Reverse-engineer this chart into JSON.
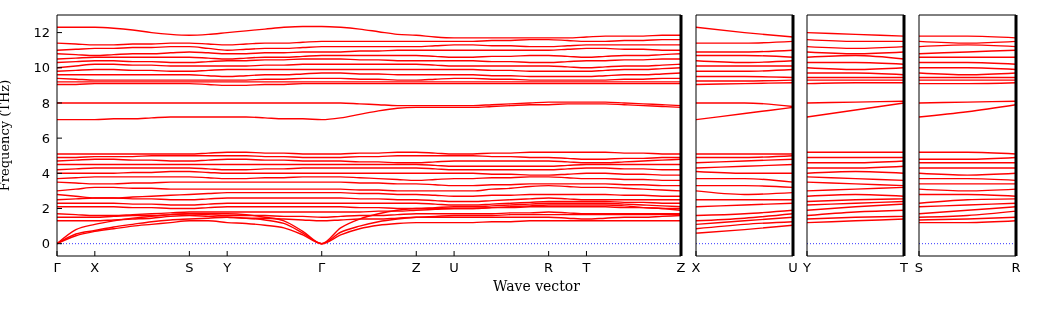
{
  "chart_data": [
    {
      "type": "line",
      "xlabel": "Wave vector",
      "ylabel": "Frequency (THz)",
      "marker": "none",
      "ylim": [
        -0.7,
        13
      ],
      "yticks": [
        0,
        2,
        4,
        6,
        8,
        10,
        12
      ],
      "categories": [
        "Γ",
        null,
        "X",
        null,
        null,
        null,
        null,
        "S",
        null,
        "Y",
        null,
        null,
        null,
        null,
        "Γ",
        null,
        null,
        null,
        null,
        "Z",
        null,
        "U",
        null,
        null,
        null,
        null,
        "R",
        null,
        "T",
        null,
        null,
        null,
        null,
        "Z"
      ],
      "ref_lines": [
        {
          "axis": "y",
          "value": 0,
          "color": "#0000ff",
          "line_style": "dotted"
        }
      ],
      "series": [
        {
          "color": "#ff0000",
          "values": [
            12.3,
            12.3,
            12.3,
            12.25,
            12.15,
            12.0,
            11.9,
            11.85,
            11.9,
            12.0,
            12.1,
            12.2,
            12.3,
            12.35,
            12.35,
            12.3,
            12.2,
            12.05,
            11.9,
            11.85,
            11.75,
            11.7,
            11.7,
            11.7,
            11.7,
            11.7,
            11.7,
            11.7,
            11.75,
            11.8,
            11.8,
            11.8,
            11.85,
            11.85
          ]
        },
        {
          "color": "#ff0000",
          "values": [
            11.4,
            11.35,
            11.3,
            11.3,
            11.35,
            11.35,
            11.4,
            11.4,
            11.35,
            11.3,
            11.35,
            11.4,
            11.4,
            11.45,
            11.5,
            11.5,
            11.5,
            11.5,
            11.5,
            11.5,
            11.5,
            11.5,
            11.5,
            11.55,
            11.55,
            11.6,
            11.6,
            11.55,
            11.5,
            11.5,
            11.55,
            11.55,
            11.6,
            11.6
          ]
        },
        {
          "color": "#ff0000",
          "values": [
            11.0,
            11.05,
            11.1,
            11.1,
            11.15,
            11.15,
            11.2,
            11.2,
            11.1,
            11.0,
            11.05,
            11.1,
            11.1,
            11.15,
            11.2,
            11.2,
            11.2,
            11.2,
            11.2,
            11.2,
            11.25,
            11.3,
            11.3,
            11.25,
            11.25,
            11.2,
            11.2,
            11.25,
            11.3,
            11.3,
            11.3,
            11.3,
            11.3,
            11.3
          ]
        },
        {
          "color": "#ff0000",
          "values": [
            10.8,
            10.75,
            10.7,
            10.75,
            10.8,
            10.8,
            10.85,
            10.9,
            10.85,
            10.8,
            10.8,
            10.85,
            10.85,
            10.9,
            10.9,
            10.9,
            10.95,
            10.95,
            11.0,
            11.0,
            11.0,
            11.0,
            11.0,
            11.0,
            11.0,
            11.0,
            11.0,
            11.05,
            11.1,
            11.1,
            11.05,
            11.05,
            11.0,
            11.0
          ]
        },
        {
          "color": "#ff0000",
          "values": [
            10.5,
            10.55,
            10.6,
            10.6,
            10.6,
            10.6,
            10.6,
            10.6,
            10.55,
            10.5,
            10.55,
            10.6,
            10.6,
            10.65,
            10.7,
            10.7,
            10.7,
            10.7,
            10.7,
            10.7,
            10.65,
            10.6,
            10.6,
            10.65,
            10.65,
            10.7,
            10.7,
            10.65,
            10.6,
            10.65,
            10.7,
            10.7,
            10.75,
            10.8
          ]
        },
        {
          "color": "#ff0000",
          "values": [
            10.3,
            10.35,
            10.4,
            10.4,
            10.35,
            10.35,
            10.3,
            10.3,
            10.35,
            10.4,
            10.4,
            10.45,
            10.45,
            10.5,
            10.5,
            10.5,
            10.45,
            10.45,
            10.4,
            10.4,
            10.4,
            10.4,
            10.4,
            10.35,
            10.35,
            10.3,
            10.3,
            10.35,
            10.4,
            10.4,
            10.45,
            10.45,
            10.5,
            10.5
          ]
        },
        {
          "color": "#ff0000",
          "values": [
            10.0,
            10.1,
            10.2,
            10.2,
            10.15,
            10.15,
            10.1,
            10.1,
            10.1,
            10.1,
            10.1,
            10.15,
            10.15,
            10.2,
            10.2,
            10.2,
            10.2,
            10.2,
            10.2,
            10.2,
            10.15,
            10.1,
            10.1,
            10.1,
            10.1,
            10.1,
            10.1,
            10.05,
            10.0,
            10.05,
            10.1,
            10.1,
            10.15,
            10.2
          ]
        },
        {
          "color": "#ff0000",
          "values": [
            9.8,
            9.85,
            9.9,
            9.9,
            9.85,
            9.85,
            9.8,
            9.8,
            9.85,
            9.9,
            9.9,
            9.9,
            9.9,
            9.9,
            9.9,
            9.9,
            9.9,
            9.9,
            9.9,
            9.9,
            9.9,
            9.9,
            9.9,
            9.85,
            9.85,
            9.8,
            9.8,
            9.8,
            9.8,
            9.85,
            9.9,
            9.9,
            9.95,
            10.0
          ]
        },
        {
          "color": "#ff0000",
          "values": [
            9.6,
            9.6,
            9.6,
            9.6,
            9.6,
            9.6,
            9.6,
            9.6,
            9.55,
            9.5,
            9.55,
            9.6,
            9.6,
            9.65,
            9.7,
            9.7,
            9.65,
            9.65,
            9.6,
            9.6,
            9.6,
            9.6,
            9.6,
            9.55,
            9.55,
            9.5,
            9.5,
            9.5,
            9.5,
            9.55,
            9.6,
            9.6,
            9.65,
            9.7
          ]
        },
        {
          "color": "#ff0000",
          "values": [
            9.4,
            9.35,
            9.3,
            9.3,
            9.3,
            9.3,
            9.3,
            9.3,
            9.3,
            9.3,
            9.3,
            9.35,
            9.35,
            9.4,
            9.4,
            9.4,
            9.35,
            9.35,
            9.3,
            9.3,
            9.35,
            9.4,
            9.4,
            9.35,
            9.35,
            9.3,
            9.3,
            9.3,
            9.3,
            9.3,
            9.35,
            9.35,
            9.4,
            9.4
          ]
        },
        {
          "color": "#ff0000",
          "values": [
            9.2,
            9.2,
            9.2,
            9.2,
            9.2,
            9.2,
            9.2,
            9.2,
            9.2,
            9.2,
            9.2,
            9.2,
            9.2,
            9.2,
            9.2,
            9.2,
            9.2,
            9.2,
            9.2,
            9.2,
            9.2,
            9.2,
            9.2,
            9.2,
            9.2,
            9.2,
            9.2,
            9.2,
            9.2,
            9.2,
            9.2,
            9.2,
            9.2,
            9.2
          ]
        },
        {
          "color": "#ff0000",
          "values": [
            9.05,
            9.05,
            9.1,
            9.1,
            9.1,
            9.1,
            9.1,
            9.1,
            9.05,
            9.0,
            9.0,
            9.05,
            9.05,
            9.1,
            9.1,
            9.1,
            9.1,
            9.1,
            9.1,
            9.1,
            9.1,
            9.1,
            9.1,
            9.1,
            9.1,
            9.1,
            9.1,
            9.1,
            9.1,
            9.1,
            9.1,
            9.1,
            9.1,
            9.1
          ]
        },
        {
          "color": "#ff0000",
          "values": [
            8.0,
            8.0,
            8.0,
            8.0,
            8.0,
            8.0,
            8.0,
            8.0,
            8.0,
            8.0,
            8.0,
            8.0,
            8.0,
            8.0,
            8.0,
            8.0,
            7.95,
            7.9,
            7.85,
            7.85,
            7.85,
            7.85,
            7.85,
            7.9,
            7.95,
            8.0,
            8.05,
            8.05,
            8.05,
            8.05,
            8.0,
            7.95,
            7.9,
            7.85
          ]
        },
        {
          "color": "#ff0000",
          "values": [
            7.05,
            7.05,
            7.05,
            7.1,
            7.1,
            7.15,
            7.2,
            7.2,
            7.2,
            7.2,
            7.2,
            7.15,
            7.1,
            7.1,
            7.05,
            7.15,
            7.35,
            7.55,
            7.7,
            7.75,
            7.75,
            7.75,
            7.75,
            7.8,
            7.85,
            7.9,
            7.9,
            7.95,
            7.95,
            7.95,
            7.9,
            7.85,
            7.8,
            7.75
          ]
        },
        {
          "color": "#ff0000",
          "values": [
            5.1,
            5.1,
            5.1,
            5.1,
            5.1,
            5.1,
            5.1,
            5.1,
            5.15,
            5.2,
            5.2,
            5.15,
            5.15,
            5.1,
            5.1,
            5.1,
            5.15,
            5.15,
            5.2,
            5.2,
            5.15,
            5.1,
            5.1,
            5.15,
            5.15,
            5.2,
            5.2,
            5.2,
            5.2,
            5.2,
            5.15,
            5.15,
            5.1,
            5.1
          ]
        },
        {
          "color": "#ff0000",
          "values": [
            4.9,
            4.9,
            4.95,
            4.95,
            4.95,
            5.0,
            5.0,
            5.0,
            5.0,
            5.0,
            5.0,
            4.95,
            4.95,
            4.9,
            4.9,
            4.9,
            4.95,
            4.95,
            5.0,
            5.0,
            5.0,
            5.0,
            5.0,
            4.95,
            4.95,
            4.9,
            4.9,
            4.85,
            4.8,
            4.8,
            4.85,
            4.85,
            4.9,
            4.9
          ]
        },
        {
          "color": "#ff0000",
          "values": [
            4.7,
            4.75,
            4.8,
            4.8,
            4.75,
            4.75,
            4.7,
            4.7,
            4.75,
            4.8,
            4.8,
            4.75,
            4.75,
            4.7,
            4.7,
            4.7,
            4.65,
            4.65,
            4.6,
            4.6,
            4.65,
            4.7,
            4.7,
            4.7,
            4.7,
            4.7,
            4.7,
            4.65,
            4.6,
            4.6,
            4.65,
            4.7,
            4.75,
            4.8
          ]
        },
        {
          "color": "#ff0000",
          "values": [
            4.5,
            4.5,
            4.5,
            4.5,
            4.5,
            4.5,
            4.5,
            4.5,
            4.5,
            4.5,
            4.5,
            4.5,
            4.5,
            4.5,
            4.5,
            4.5,
            4.5,
            4.5,
            4.5,
            4.5,
            4.45,
            4.4,
            4.4,
            4.4,
            4.4,
            4.4,
            4.4,
            4.45,
            4.5,
            4.5,
            4.5,
            4.5,
            4.5,
            4.5
          ]
        },
        {
          "color": "#ff0000",
          "values": [
            4.2,
            4.25,
            4.3,
            4.3,
            4.3,
            4.3,
            4.3,
            4.3,
            4.25,
            4.2,
            4.2,
            4.25,
            4.25,
            4.3,
            4.3,
            4.3,
            4.3,
            4.3,
            4.3,
            4.3,
            4.25,
            4.2,
            4.2,
            4.2,
            4.2,
            4.2,
            4.2,
            4.25,
            4.3,
            4.3,
            4.25,
            4.25,
            4.2,
            4.2
          ]
        },
        {
          "color": "#ff0000",
          "values": [
            4.0,
            4.0,
            4.0,
            4.0,
            4.05,
            4.05,
            4.1,
            4.1,
            4.05,
            4.0,
            4.0,
            4.0,
            4.0,
            4.0,
            4.0,
            4.0,
            4.0,
            4.0,
            4.0,
            4.0,
            4.0,
            4.0,
            4.0,
            3.95,
            3.95,
            3.9,
            3.9,
            3.95,
            4.0,
            4.0,
            3.95,
            3.95,
            3.9,
            3.9
          ]
        },
        {
          "color": "#ff0000",
          "values": [
            3.7,
            3.75,
            3.8,
            3.8,
            3.8,
            3.8,
            3.8,
            3.8,
            3.75,
            3.7,
            3.7,
            3.75,
            3.75,
            3.8,
            3.8,
            3.8,
            3.75,
            3.7,
            3.65,
            3.6,
            3.65,
            3.7,
            3.7,
            3.75,
            3.75,
            3.8,
            3.8,
            3.75,
            3.7,
            3.7,
            3.65,
            3.65,
            3.6,
            3.6
          ]
        },
        {
          "color": "#ff0000",
          "values": [
            3.5,
            3.45,
            3.4,
            3.4,
            3.45,
            3.45,
            3.5,
            3.5,
            3.5,
            3.5,
            3.5,
            3.5,
            3.5,
            3.5,
            3.5,
            3.5,
            3.45,
            3.45,
            3.4,
            3.4,
            3.35,
            3.3,
            3.3,
            3.35,
            3.35,
            3.4,
            3.4,
            3.4,
            3.4,
            3.4,
            3.35,
            3.35,
            3.3,
            3.3
          ]
        },
        {
          "color": "#ff0000",
          "values": [
            3.0,
            3.1,
            3.2,
            3.2,
            3.15,
            3.15,
            3.1,
            3.1,
            3.1,
            3.1,
            3.1,
            3.1,
            3.1,
            3.1,
            3.1,
            3.1,
            3.05,
            3.05,
            3.0,
            3.0,
            3.0,
            3.0,
            3.0,
            3.1,
            3.15,
            3.25,
            3.3,
            3.25,
            3.2,
            3.2,
            3.15,
            3.1,
            3.05,
            3.0
          ]
        },
        {
          "color": "#ff0000",
          "values": [
            2.8,
            2.7,
            2.6,
            2.6,
            2.65,
            2.7,
            2.75,
            2.8,
            2.85,
            2.9,
            2.9,
            2.9,
            2.9,
            2.9,
            2.9,
            2.9,
            2.85,
            2.85,
            2.8,
            2.8,
            2.75,
            2.7,
            2.7,
            2.75,
            2.75,
            2.8,
            2.8,
            2.8,
            2.8,
            2.8,
            2.75,
            2.75,
            2.7,
            2.7
          ]
        },
        {
          "color": "#ff0000",
          "values": [
            2.5,
            2.55,
            2.6,
            2.6,
            2.55,
            2.55,
            2.5,
            2.5,
            2.55,
            2.6,
            2.6,
            2.6,
            2.6,
            2.6,
            2.6,
            2.6,
            2.55,
            2.55,
            2.5,
            2.5,
            2.45,
            2.4,
            2.4,
            2.45,
            2.5,
            2.55,
            2.6,
            2.55,
            2.5,
            2.5,
            2.5,
            2.5,
            2.5,
            2.5
          ]
        },
        {
          "color": "#ff0000",
          "values": [
            2.3,
            2.3,
            2.3,
            2.3,
            2.25,
            2.25,
            2.2,
            2.2,
            2.25,
            2.3,
            2.3,
            2.3,
            2.3,
            2.3,
            2.3,
            2.3,
            2.3,
            2.3,
            2.3,
            2.3,
            2.25,
            2.2,
            2.2,
            2.25,
            2.3,
            2.35,
            2.4,
            2.4,
            2.4,
            2.4,
            2.35,
            2.35,
            2.3,
            2.3
          ]
        },
        {
          "color": "#ff0000",
          "values": [
            2.1,
            2.1,
            2.1,
            2.1,
            2.05,
            2.05,
            2.0,
            2.0,
            2.05,
            2.1,
            2.1,
            2.1,
            2.1,
            2.1,
            2.1,
            2.1,
            2.05,
            2.05,
            2.0,
            2.0,
            2.05,
            2.1,
            2.1,
            2.15,
            2.2,
            2.25,
            2.3,
            2.3,
            2.3,
            2.3,
            2.25,
            2.2,
            2.15,
            2.1
          ]
        },
        {
          "color": "#ff0000",
          "values": [
            1.7,
            1.65,
            1.6,
            1.6,
            1.65,
            1.7,
            1.75,
            1.8,
            1.8,
            1.8,
            1.8,
            1.8,
            1.8,
            1.8,
            1.8,
            1.8,
            1.8,
            1.85,
            1.85,
            1.9,
            1.95,
            2.0,
            2.0,
            2.05,
            2.1,
            2.15,
            2.2,
            2.2,
            2.2,
            2.2,
            2.15,
            2.05,
            2.0,
            1.9
          ]
        },
        {
          "color": "#ff0000",
          "values": [
            1.5,
            1.5,
            1.5,
            1.55,
            1.6,
            1.6,
            1.65,
            1.7,
            1.65,
            1.6,
            1.6,
            1.6,
            1.55,
            1.55,
            1.5,
            1.55,
            1.6,
            1.6,
            1.65,
            1.7,
            1.7,
            1.7,
            1.7,
            1.7,
            1.75,
            1.75,
            1.8,
            1.75,
            1.7,
            1.7,
            1.7,
            1.7,
            1.7,
            1.7
          ]
        },
        {
          "color": "#ff0000",
          "values": [
            1.3,
            1.3,
            1.3,
            1.35,
            1.4,
            1.45,
            1.55,
            1.6,
            1.55,
            1.5,
            1.45,
            1.45,
            1.4,
            1.35,
            1.3,
            1.35,
            1.4,
            1.4,
            1.45,
            1.5,
            1.5,
            1.5,
            1.5,
            1.5,
            1.5,
            1.5,
            1.5,
            1.45,
            1.4,
            1.45,
            1.5,
            1.5,
            1.55,
            1.6
          ]
        },
        {
          "color": "#ff0000",
          "values": [
            0,
            0.45,
            0.7,
            0.85,
            1.0,
            1.1,
            1.2,
            1.3,
            1.3,
            1.2,
            1.15,
            1.05,
            0.9,
            0.5,
            0,
            0.5,
            0.85,
            1.05,
            1.15,
            1.2,
            1.2,
            1.2,
            1.2,
            1.25,
            1.25,
            1.3,
            1.3,
            1.3,
            1.3,
            1.3,
            1.3,
            1.3,
            1.3,
            1.3
          ]
        },
        {
          "color": "#ff0000",
          "values": [
            0,
            0.55,
            0.75,
            0.95,
            1.1,
            1.25,
            1.35,
            1.4,
            1.45,
            1.5,
            1.45,
            1.35,
            1.15,
            0.6,
            0,
            0.65,
            1.0,
            1.25,
            1.4,
            1.5,
            1.55,
            1.6,
            1.6,
            1.6,
            1.65,
            1.65,
            1.65,
            1.65,
            1.65,
            1.65,
            1.65,
            1.65,
            1.65,
            1.65
          ]
        },
        {
          "color": "#ff0000",
          "values": [
            0,
            0.8,
            1.1,
            1.3,
            1.45,
            1.55,
            1.65,
            1.7,
            1.7,
            1.7,
            1.65,
            1.5,
            1.3,
            0.7,
            0,
            0.9,
            1.4,
            1.7,
            1.9,
            2.0,
            2.0,
            2.0,
            2.0,
            2.05,
            2.05,
            2.1,
            2.1,
            2.1,
            2.1,
            2.1,
            2.05,
            2.05,
            2.0,
            2.0
          ]
        }
      ]
    },
    {
      "type": "line",
      "marker": "none",
      "tick_labels": "x",
      "ylim": [
        -0.7,
        13
      ],
      "yticks": [
        0,
        2,
        4,
        6,
        8,
        10,
        12
      ],
      "categories": [
        "X",
        null,
        "U"
      ],
      "ref_lines": [
        {
          "axis": "y",
          "value": 0,
          "color": "#0000ff",
          "line_style": "dotted"
        }
      ],
      "series": [
        {
          "color": "#ff0000",
          "values": [
            12.3,
            12.0,
            11.75
          ]
        },
        {
          "color": "#ff0000",
          "values": [
            11.4,
            11.4,
            11.5
          ]
        },
        {
          "color": "#ff0000",
          "values": [
            10.9,
            10.9,
            11.0
          ]
        },
        {
          "color": "#ff0000",
          "values": [
            10.7,
            10.7,
            10.6
          ]
        },
        {
          "color": "#ff0000",
          "values": [
            10.4,
            10.3,
            10.4
          ]
        },
        {
          "color": "#ff0000",
          "values": [
            10.1,
            10.1,
            10.1
          ]
        },
        {
          "color": "#ff0000",
          "values": [
            9.8,
            9.8,
            9.9
          ]
        },
        {
          "color": "#ff0000",
          "values": [
            9.5,
            9.5,
            9.45
          ]
        },
        {
          "color": "#ff0000",
          "values": [
            9.25,
            9.25,
            9.3
          ]
        },
        {
          "color": "#ff0000",
          "values": [
            9.05,
            9.1,
            9.15
          ]
        },
        {
          "color": "#ff0000",
          "values": [
            8.0,
            8.0,
            7.8
          ]
        },
        {
          "color": "#ff0000",
          "values": [
            7.05,
            7.4,
            7.75
          ]
        },
        {
          "color": "#ff0000",
          "values": [
            5.1,
            5.1,
            5.1
          ]
        },
        {
          "color": "#ff0000",
          "values": [
            4.9,
            4.9,
            5.0
          ]
        },
        {
          "color": "#ff0000",
          "values": [
            4.6,
            4.7,
            4.8
          ]
        },
        {
          "color": "#ff0000",
          "values": [
            4.3,
            4.4,
            4.5
          ]
        },
        {
          "color": "#ff0000",
          "values": [
            4.1,
            4.0,
            4.0
          ]
        },
        {
          "color": "#ff0000",
          "values": [
            3.7,
            3.7,
            3.5
          ]
        },
        {
          "color": "#ff0000",
          "values": [
            3.3,
            3.3,
            3.2
          ]
        },
        {
          "color": "#ff0000",
          "values": [
            3.0,
            2.8,
            2.9
          ]
        },
        {
          "color": "#ff0000",
          "values": [
            2.5,
            2.5,
            2.5
          ]
        },
        {
          "color": "#ff0000",
          "values": [
            2.1,
            2.2,
            2.3
          ]
        },
        {
          "color": "#ff0000",
          "values": [
            1.6,
            1.7,
            1.9
          ]
        },
        {
          "color": "#ff0000",
          "values": [
            1.3,
            1.45,
            1.7
          ]
        },
        {
          "color": "#ff0000",
          "values": [
            1.1,
            1.3,
            1.5
          ]
        },
        {
          "color": "#ff0000",
          "values": [
            0.85,
            1.1,
            1.25
          ]
        },
        {
          "color": "#ff0000",
          "values": [
            0.6,
            0.8,
            1.05
          ]
        }
      ]
    },
    {
      "type": "line",
      "marker": "none",
      "tick_labels": "x",
      "ylim": [
        -0.7,
        13
      ],
      "yticks": [
        0,
        2,
        4,
        6,
        8,
        10,
        12
      ],
      "categories": [
        "Y",
        null,
        "T"
      ],
      "ref_lines": [
        {
          "axis": "y",
          "value": 0,
          "color": "#0000ff",
          "line_style": "dotted"
        }
      ],
      "series": [
        {
          "color": "#ff0000",
          "values": [
            12.0,
            11.9,
            11.8
          ]
        },
        {
          "color": "#ff0000",
          "values": [
            11.6,
            11.5,
            11.5
          ]
        },
        {
          "color": "#ff0000",
          "values": [
            11.2,
            11.1,
            11.2
          ]
        },
        {
          "color": "#ff0000",
          "values": [
            10.9,
            10.8,
            10.9
          ]
        },
        {
          "color": "#ff0000",
          "values": [
            10.6,
            10.7,
            10.5
          ]
        },
        {
          "color": "#ff0000",
          "values": [
            10.3,
            10.3,
            10.2
          ]
        },
        {
          "color": "#ff0000",
          "values": [
            10.0,
            9.9,
            10.0
          ]
        },
        {
          "color": "#ff0000",
          "values": [
            9.7,
            9.7,
            9.6
          ]
        },
        {
          "color": "#ff0000",
          "values": [
            9.45,
            9.45,
            9.45
          ]
        },
        {
          "color": "#ff0000",
          "values": [
            9.3,
            9.3,
            9.3
          ]
        },
        {
          "color": "#ff0000",
          "values": [
            9.1,
            9.15,
            9.15
          ]
        },
        {
          "color": "#ff0000",
          "values": [
            8.0,
            8.05,
            8.1
          ]
        },
        {
          "color": "#ff0000",
          "values": [
            7.2,
            7.6,
            8.0
          ]
        },
        {
          "color": "#ff0000",
          "values": [
            5.2,
            5.2,
            5.2
          ]
        },
        {
          "color": "#ff0000",
          "values": [
            4.9,
            4.9,
            4.9
          ]
        },
        {
          "color": "#ff0000",
          "values": [
            4.6,
            4.6,
            4.7
          ]
        },
        {
          "color": "#ff0000",
          "values": [
            4.3,
            4.3,
            4.4
          ]
        },
        {
          "color": "#ff0000",
          "values": [
            4.0,
            4.1,
            4.0
          ]
        },
        {
          "color": "#ff0000",
          "values": [
            3.8,
            3.7,
            3.6
          ]
        },
        {
          "color": "#ff0000",
          "values": [
            3.5,
            3.4,
            3.3
          ]
        },
        {
          "color": "#ff0000",
          "values": [
            3.0,
            3.1,
            3.2
          ]
        },
        {
          "color": "#ff0000",
          "values": [
            2.7,
            2.8,
            2.7
          ]
        },
        {
          "color": "#ff0000",
          "values": [
            2.4,
            2.5,
            2.55
          ]
        },
        {
          "color": "#ff0000",
          "values": [
            2.2,
            2.3,
            2.4
          ]
        },
        {
          "color": "#ff0000",
          "values": [
            1.9,
            2.1,
            2.25
          ]
        },
        {
          "color": "#ff0000",
          "values": [
            1.6,
            1.8,
            1.9
          ]
        },
        {
          "color": "#ff0000",
          "values": [
            1.4,
            1.5,
            1.55
          ]
        },
        {
          "color": "#ff0000",
          "values": [
            1.2,
            1.3,
            1.4
          ]
        }
      ]
    },
    {
      "type": "line",
      "marker": "none",
      "tick_labels": "x",
      "ylim": [
        -0.7,
        13
      ],
      "yticks": [
        0,
        2,
        4,
        6,
        8,
        10,
        12
      ],
      "categories": [
        "S",
        null,
        "R"
      ],
      "ref_lines": [
        {
          "axis": "y",
          "value": 0,
          "color": "#0000ff",
          "line_style": "dotted"
        }
      ],
      "series": [
        {
          "color": "#ff0000",
          "values": [
            11.8,
            11.8,
            11.7
          ]
        },
        {
          "color": "#ff0000",
          "values": [
            11.5,
            11.4,
            11.5
          ]
        },
        {
          "color": "#ff0000",
          "values": [
            11.2,
            11.3,
            11.2
          ]
        },
        {
          "color": "#ff0000",
          "values": [
            10.8,
            10.9,
            11.0
          ]
        },
        {
          "color": "#ff0000",
          "values": [
            10.6,
            10.6,
            10.6
          ]
        },
        {
          "color": "#ff0000",
          "values": [
            10.3,
            10.3,
            10.2
          ]
        },
        {
          "color": "#ff0000",
          "values": [
            10.0,
            10.0,
            9.9
          ]
        },
        {
          "color": "#ff0000",
          "values": [
            9.7,
            9.6,
            9.7
          ]
        },
        {
          "color": "#ff0000",
          "values": [
            9.45,
            9.45,
            9.45
          ]
        },
        {
          "color": "#ff0000",
          "values": [
            9.3,
            9.3,
            9.3
          ]
        },
        {
          "color": "#ff0000",
          "values": [
            9.1,
            9.1,
            9.15
          ]
        },
        {
          "color": "#ff0000",
          "values": [
            8.0,
            8.05,
            8.1
          ]
        },
        {
          "color": "#ff0000",
          "values": [
            7.2,
            7.5,
            7.9
          ]
        },
        {
          "color": "#ff0000",
          "values": [
            5.2,
            5.2,
            5.1
          ]
        },
        {
          "color": "#ff0000",
          "values": [
            4.8,
            4.8,
            4.9
          ]
        },
        {
          "color": "#ff0000",
          "values": [
            4.6,
            4.6,
            4.6
          ]
        },
        {
          "color": "#ff0000",
          "values": [
            4.3,
            4.3,
            4.3
          ]
        },
        {
          "color": "#ff0000",
          "values": [
            4.0,
            3.9,
            4.0
          ]
        },
        {
          "color": "#ff0000",
          "values": [
            3.7,
            3.7,
            3.6
          ]
        },
        {
          "color": "#ff0000",
          "values": [
            3.4,
            3.4,
            3.4
          ]
        },
        {
          "color": "#ff0000",
          "values": [
            3.1,
            3.0,
            3.1
          ]
        },
        {
          "color": "#ff0000",
          "values": [
            2.8,
            2.8,
            2.7
          ]
        },
        {
          "color": "#ff0000",
          "values": [
            2.3,
            2.5,
            2.55
          ]
        },
        {
          "color": "#ff0000",
          "values": [
            2.1,
            2.2,
            2.3
          ]
        },
        {
          "color": "#ff0000",
          "values": [
            1.7,
            1.9,
            2.1
          ]
        },
        {
          "color": "#ff0000",
          "values": [
            1.5,
            1.6,
            1.85
          ]
        },
        {
          "color": "#ff0000",
          "values": [
            1.35,
            1.4,
            1.5
          ]
        },
        {
          "color": "#ff0000",
          "values": [
            1.2,
            1.2,
            1.3
          ]
        }
      ]
    }
  ]
}
